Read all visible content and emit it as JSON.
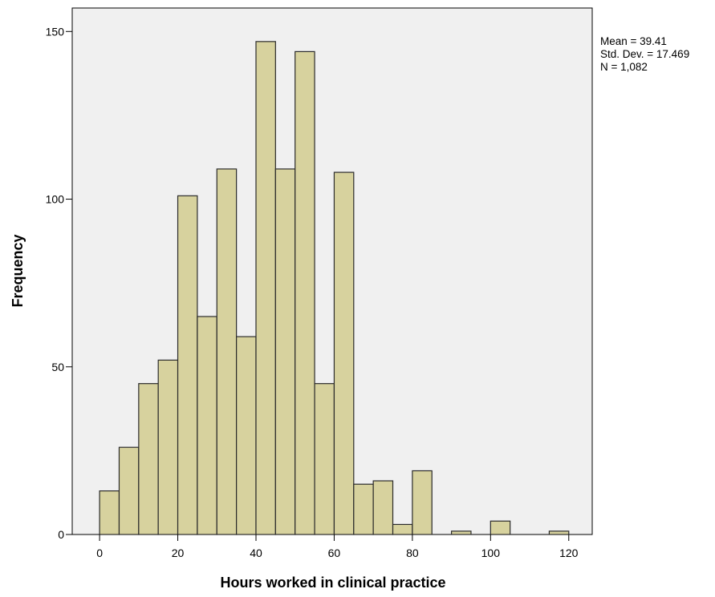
{
  "chart_data": {
    "type": "bar",
    "xlabel": "Hours worked in clinical practice",
    "ylabel": "Frequency",
    "xlim": [
      -7,
      126
    ],
    "ylim": [
      0,
      157
    ],
    "x_ticks": [
      0,
      20,
      40,
      60,
      80,
      100,
      120
    ],
    "y_ticks": [
      0,
      50,
      100,
      150
    ],
    "bin_width": 5,
    "bins": [
      {
        "start": 0,
        "end": 5,
        "value": 13
      },
      {
        "start": 5,
        "end": 10,
        "value": 26
      },
      {
        "start": 10,
        "end": 15,
        "value": 45
      },
      {
        "start": 15,
        "end": 20,
        "value": 52
      },
      {
        "start": 20,
        "end": 25,
        "value": 101
      },
      {
        "start": 25,
        "end": 30,
        "value": 65
      },
      {
        "start": 30,
        "end": 35,
        "value": 109
      },
      {
        "start": 35,
        "end": 40,
        "value": 59
      },
      {
        "start": 40,
        "end": 45,
        "value": 147
      },
      {
        "start": 45,
        "end": 50,
        "value": 109
      },
      {
        "start": 50,
        "end": 55,
        "value": 144
      },
      {
        "start": 55,
        "end": 60,
        "value": 45
      },
      {
        "start": 60,
        "end": 65,
        "value": 108
      },
      {
        "start": 65,
        "end": 70,
        "value": 15
      },
      {
        "start": 70,
        "end": 75,
        "value": 16
      },
      {
        "start": 75,
        "end": 80,
        "value": 3
      },
      {
        "start": 80,
        "end": 85,
        "value": 19
      },
      {
        "start": 90,
        "end": 95,
        "value": 1
      },
      {
        "start": 100,
        "end": 105,
        "value": 4
      },
      {
        "start": 115,
        "end": 120,
        "value": 1
      }
    ],
    "stats": [
      "Mean = 39.41",
      "Std. Dev. = 17.469",
      "N = 1,082"
    ],
    "grid": false,
    "legend": "none",
    "colors": {
      "bar_fill": "#d7d29e",
      "bar_stroke": "#2b2b2b",
      "plot_background": "#f0f0f0",
      "axis": "#000000"
    }
  }
}
